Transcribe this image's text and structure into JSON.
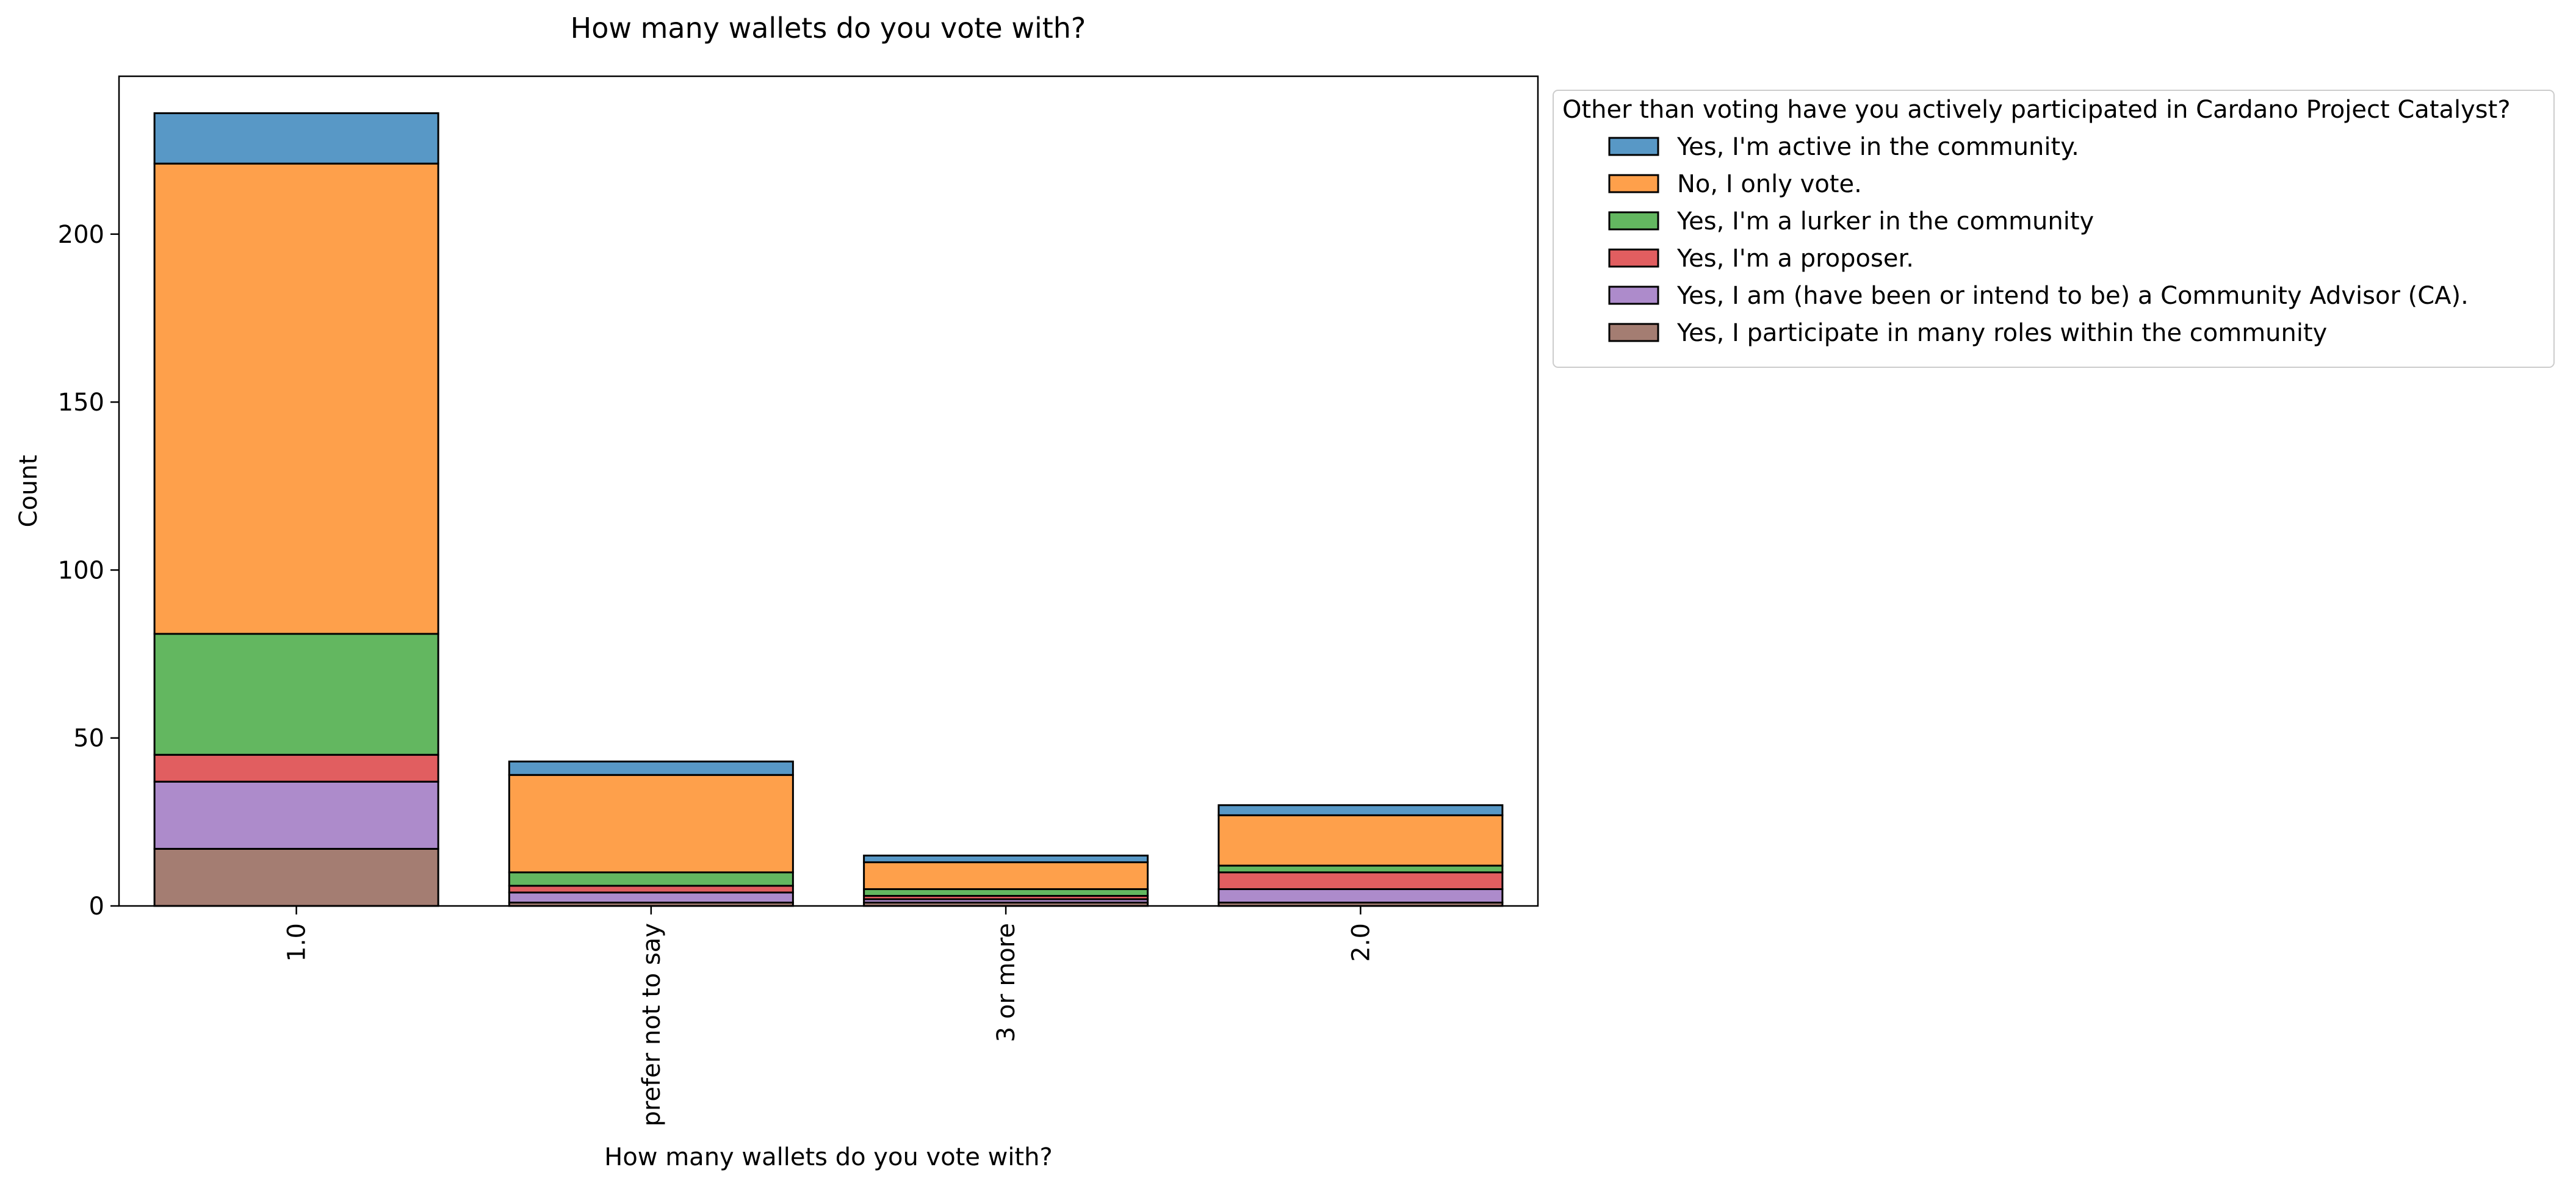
{
  "chart_data": {
    "type": "bar",
    "stacked": true,
    "title": "How many wallets do you vote with?",
    "xlabel": "How many wallets do you vote with?",
    "ylabel": "Count",
    "categories": [
      "1.0",
      "prefer not to say",
      "3 or more",
      "2.0"
    ],
    "ylim": [
      0,
      247
    ],
    "yticks": [
      0,
      50,
      100,
      150,
      200
    ],
    "grid": false,
    "legend": {
      "title": "Other than voting have you actively participated in Cardano Project Catalyst?",
      "placement": "outside-upper-right"
    },
    "series": [
      {
        "name": "Yes, I participate in many roles within the community",
        "color": "#a47d72",
        "values": [
          17,
          1,
          1,
          1
        ]
      },
      {
        "name": "Yes, I am (have been or intend to be) a Community Advisor (CA).",
        "color": "#ad8bcb",
        "values": [
          20,
          3,
          1,
          4
        ]
      },
      {
        "name": "Yes, I'm a proposer.",
        "color": "#e15e60",
        "values": [
          8,
          2,
          1,
          5
        ]
      },
      {
        "name": "Yes, I'm a lurker in the community",
        "color": "#63b760",
        "values": [
          36,
          4,
          2,
          2
        ]
      },
      {
        "name": "No, I only vote.",
        "color": "#fea04b",
        "values": [
          140,
          29,
          8,
          15
        ]
      },
      {
        "name": "Yes, I'm active in the community.",
        "color": "#5898c6",
        "values": [
          15,
          4,
          2,
          3
        ]
      }
    ],
    "legend_order": [
      5,
      4,
      3,
      2,
      1,
      0
    ]
  }
}
